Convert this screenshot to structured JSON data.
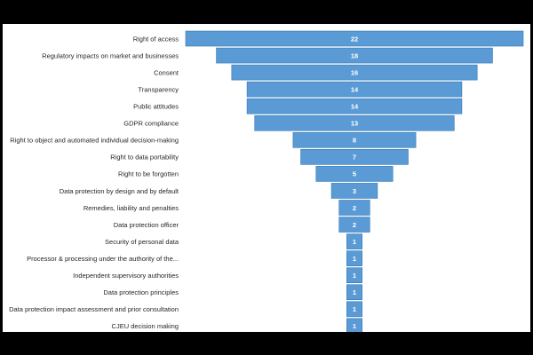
{
  "chart_data": {
    "type": "bar",
    "orientation": "horizontal-centered",
    "title": "",
    "xlabel": "",
    "ylabel": "",
    "categories": [
      "Right of access",
      "Regulatory impacts on market and businesses",
      "Consent",
      "Transparency",
      "Public attitudes",
      "GDPR compliance",
      "Right to object and automated individual decision-making",
      "Right to data portability",
      "Right to be forgotten",
      "Data protection by design and by default",
      "Remedies, liability and penalties",
      "Data protection officer",
      "Security of personal data",
      "Processor & processing under the authority of the...",
      "Independent supervisory authorities",
      "Data protection principles",
      "Data protection impact assessment and prior consultation",
      "CJEU decision making"
    ],
    "values": [
      22,
      18,
      16,
      14,
      14,
      13,
      8,
      7,
      5,
      3,
      2,
      2,
      1,
      1,
      1,
      1,
      1,
      1
    ],
    "xlim": [
      0,
      22
    ],
    "grid": false,
    "legend": "none",
    "bar_color": "#5B9BD5",
    "bar_border_color": "#2F75B5",
    "value_label_color": "#FFFFFF"
  }
}
